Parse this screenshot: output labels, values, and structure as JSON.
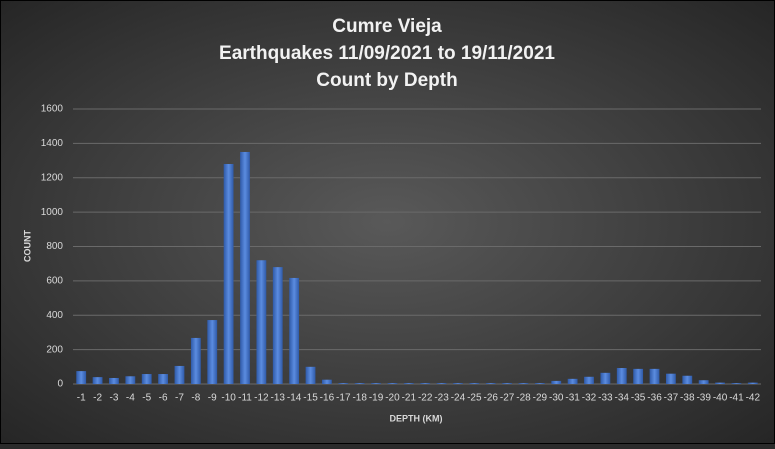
{
  "chart_data": {
    "type": "bar",
    "title": [
      "Cumre Vieja",
      "Earthquakes 11/09/2021 to 19/11/2021",
      "Count by Depth"
    ],
    "x_label": "DEPTH (KM)",
    "y_label": "COUNT",
    "categories": [
      "-1",
      "-2",
      "-3",
      "-4",
      "-5",
      "-6",
      "-7",
      "-8",
      "-9",
      "-10",
      "-11",
      "-12",
      "-13",
      "-14",
      "-15",
      "-16",
      "-17",
      "-18",
      "-19",
      "-20",
      "-21",
      "-22",
      "-23",
      "-24",
      "-25",
      "-26",
      "-27",
      "-28",
      "-29",
      "-30",
      "-31",
      "-32",
      "-33",
      "-34",
      "-35",
      "-36",
      "-37",
      "-38",
      "-39",
      "-40",
      "-41",
      "-42"
    ],
    "values": [
      75,
      40,
      35,
      45,
      58,
      58,
      105,
      268,
      372,
      1280,
      1350,
      720,
      680,
      617,
      100,
      25,
      5,
      5,
      5,
      5,
      5,
      5,
      5,
      5,
      5,
      5,
      5,
      5,
      5,
      18,
      30,
      42,
      65,
      93,
      88,
      88,
      60,
      48,
      22,
      8,
      5,
      8
    ],
    "color": "#4472c4",
    "ylim": [
      0,
      1600
    ],
    "yticks": [
      0,
      200,
      400,
      600,
      800,
      1000,
      1200,
      1400,
      1600
    ],
    "grid": true
  }
}
